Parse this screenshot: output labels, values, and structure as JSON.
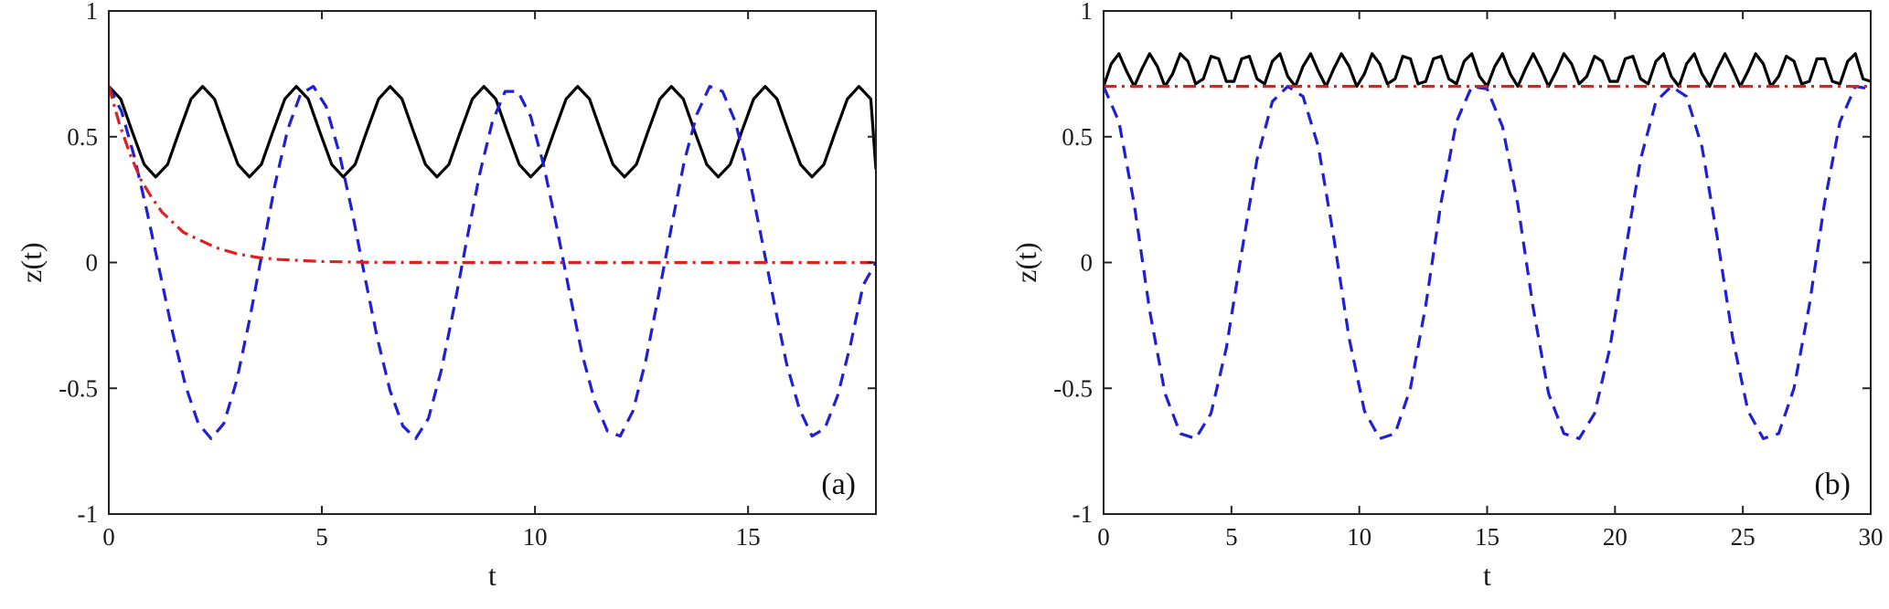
{
  "chart_data": [
    {
      "type": "line",
      "panel_label": "(a)",
      "xlabel": "t",
      "ylabel": "z(t)",
      "xlim": [
        0,
        18
      ],
      "ylim": [
        -1,
        1
      ],
      "xticks": [
        0,
        5,
        10,
        15
      ],
      "yticks": [
        -1,
        -0.5,
        0,
        0.5,
        1
      ],
      "grid": false,
      "series": [
        {
          "color": "#000000",
          "style": "solid",
          "x": [
            0,
            0.28,
            0.55,
            0.83,
            1.1,
            1.38,
            1.65,
            1.93,
            2.2,
            2.48,
            2.75,
            3.03,
            3.3,
            3.58,
            3.85,
            4.13,
            4.4,
            4.68,
            4.95,
            5.23,
            5.5,
            5.78,
            6.05,
            6.33,
            6.6,
            6.88,
            7.15,
            7.43,
            7.7,
            7.98,
            8.25,
            8.53,
            8.8,
            9.08,
            9.35,
            9.63,
            9.9,
            10.18,
            10.45,
            10.73,
            11,
            11.28,
            11.55,
            11.83,
            12.1,
            12.38,
            12.65,
            12.93,
            13.2,
            13.48,
            13.75,
            14.03,
            14.3,
            14.58,
            14.85,
            15.13,
            15.4,
            15.68,
            15.95,
            16.23,
            16.5,
            16.78,
            17.05,
            17.33,
            17.6,
            17.88,
            18
          ],
          "y": [
            0.7,
            0.65,
            0.52,
            0.39,
            0.34,
            0.39,
            0.52,
            0.65,
            0.7,
            0.65,
            0.52,
            0.39,
            0.34,
            0.39,
            0.52,
            0.65,
            0.7,
            0.65,
            0.52,
            0.39,
            0.34,
            0.39,
            0.52,
            0.65,
            0.7,
            0.65,
            0.52,
            0.39,
            0.34,
            0.39,
            0.52,
            0.65,
            0.7,
            0.65,
            0.52,
            0.39,
            0.34,
            0.39,
            0.52,
            0.65,
            0.7,
            0.65,
            0.52,
            0.39,
            0.34,
            0.39,
            0.52,
            0.65,
            0.7,
            0.65,
            0.52,
            0.39,
            0.34,
            0.39,
            0.52,
            0.65,
            0.7,
            0.65,
            0.52,
            0.39,
            0.34,
            0.39,
            0.52,
            0.65,
            0.7,
            0.65,
            0.37
          ]
        },
        {
          "color": "#1f1fd6",
          "style": "dashed",
          "x": [
            0,
            0.3,
            0.6,
            0.9,
            1.2,
            1.5,
            1.8,
            2.1,
            2.4,
            2.7,
            3.0,
            3.3,
            3.6,
            3.9,
            4.2,
            4.5,
            4.8,
            5.1,
            5.4,
            5.7,
            6.0,
            6.3,
            6.6,
            6.9,
            7.2,
            7.5,
            7.8,
            8.1,
            8.4,
            8.7,
            9.0,
            9.3,
            9.6,
            9.9,
            10.2,
            10.5,
            10.8,
            11.1,
            11.4,
            11.7,
            12.0,
            12.3,
            12.6,
            12.9,
            13.2,
            13.5,
            13.8,
            14.1,
            14.4,
            14.7,
            15.0,
            15.3,
            15.6,
            15.9,
            16.2,
            16.5,
            16.8,
            17.1,
            17.4,
            17.7,
            18
          ],
          "y": [
            0.7,
            0.6,
            0.42,
            0.2,
            -0.04,
            -0.28,
            -0.49,
            -0.64,
            -0.7,
            -0.64,
            -0.47,
            -0.23,
            0.04,
            0.31,
            0.53,
            0.67,
            0.7,
            0.62,
            0.44,
            0.21,
            -0.05,
            -0.3,
            -0.51,
            -0.65,
            -0.7,
            -0.62,
            -0.43,
            -0.18,
            0.09,
            0.35,
            0.56,
            0.68,
            0.68,
            0.58,
            0.39,
            0.15,
            -0.11,
            -0.36,
            -0.55,
            -0.67,
            -0.69,
            -0.59,
            -0.39,
            -0.13,
            0.14,
            0.4,
            0.59,
            0.7,
            0.68,
            0.56,
            0.36,
            0.11,
            -0.15,
            -0.4,
            -0.58,
            -0.69,
            -0.66,
            -0.53,
            -0.33,
            -0.09,
            0.0
          ]
        },
        {
          "color": "#e02020",
          "style": "dashdot",
          "x": [
            0,
            0.25,
            0.5,
            0.75,
            1.0,
            1.25,
            1.5,
            1.75,
            2.0,
            2.5,
            3.0,
            3.5,
            4.0,
            5.0,
            6.0,
            8.0,
            10.0,
            12.0,
            14.0,
            16.0,
            18.0
          ],
          "y": [
            0.7,
            0.55,
            0.43,
            0.33,
            0.26,
            0.2,
            0.16,
            0.12,
            0.1,
            0.06,
            0.035,
            0.02,
            0.012,
            0.004,
            0.001,
            0.0,
            0.0,
            0.0,
            0.0,
            0.0,
            0.0
          ]
        }
      ]
    },
    {
      "type": "line",
      "panel_label": "(b)",
      "xlabel": "t",
      "ylabel": "z(t)",
      "xlim": [
        0,
        30
      ],
      "ylim": [
        -1,
        1
      ],
      "xticks": [
        0,
        5,
        10,
        15,
        20,
        25,
        30
      ],
      "yticks": [
        -1,
        -0.5,
        0,
        0.5,
        1
      ],
      "grid": false,
      "series": [
        {
          "color": "#000000",
          "style": "solid",
          "x": [
            0,
            0.3,
            0.6,
            0.9,
            1.2,
            1.5,
            1.8,
            2.1,
            2.4,
            2.7,
            3.0,
            3.3,
            3.6,
            3.9,
            4.2,
            4.5,
            4.8,
            5.1,
            5.4,
            5.7,
            6.0,
            6.3,
            6.6,
            6.9,
            7.2,
            7.5,
            7.8,
            8.1,
            8.4,
            8.7,
            9.0,
            9.3,
            9.6,
            9.9,
            10.2,
            10.5,
            10.8,
            11.1,
            11.4,
            11.7,
            12.0,
            12.3,
            12.6,
            12.9,
            13.2,
            13.5,
            13.8,
            14.1,
            14.4,
            14.7,
            15.0,
            15.3,
            15.6,
            15.9,
            16.2,
            16.5,
            16.8,
            17.1,
            17.4,
            17.7,
            18.0,
            18.3,
            18.6,
            18.9,
            19.2,
            19.5,
            19.8,
            20.1,
            20.4,
            20.7,
            21.0,
            21.3,
            21.6,
            21.9,
            22.2,
            22.5,
            22.8,
            23.1,
            23.4,
            23.7,
            24.0,
            24.3,
            24.6,
            24.9,
            25.2,
            25.5,
            25.8,
            26.1,
            26.4,
            26.7,
            27.0,
            27.3,
            27.6,
            27.9,
            28.2,
            28.5,
            28.8,
            29.1,
            29.4,
            29.7,
            30.0
          ],
          "y": [
            0.7,
            0.79,
            0.83,
            0.76,
            0.7,
            0.77,
            0.83,
            0.78,
            0.7,
            0.75,
            0.83,
            0.8,
            0.71,
            0.73,
            0.82,
            0.81,
            0.72,
            0.72,
            0.81,
            0.82,
            0.73,
            0.71,
            0.8,
            0.83,
            0.74,
            0.7,
            0.78,
            0.83,
            0.76,
            0.7,
            0.77,
            0.83,
            0.78,
            0.7,
            0.75,
            0.83,
            0.79,
            0.71,
            0.73,
            0.82,
            0.81,
            0.71,
            0.72,
            0.81,
            0.82,
            0.73,
            0.71,
            0.8,
            0.83,
            0.74,
            0.7,
            0.78,
            0.83,
            0.75,
            0.7,
            0.77,
            0.83,
            0.77,
            0.7,
            0.76,
            0.83,
            0.79,
            0.71,
            0.74,
            0.82,
            0.8,
            0.72,
            0.72,
            0.81,
            0.82,
            0.73,
            0.71,
            0.8,
            0.83,
            0.74,
            0.7,
            0.79,
            0.83,
            0.75,
            0.7,
            0.77,
            0.83,
            0.77,
            0.7,
            0.76,
            0.83,
            0.79,
            0.7,
            0.74,
            0.82,
            0.8,
            0.71,
            0.72,
            0.81,
            0.81,
            0.72,
            0.71,
            0.8,
            0.83,
            0.73,
            0.72
          ]
        },
        {
          "color": "#1f1fd6",
          "style": "dashed",
          "x": [
            0,
            0.6,
            1.2,
            1.8,
            2.4,
            3.0,
            3.6,
            4.2,
            4.8,
            5.4,
            6.0,
            6.6,
            7.2,
            7.8,
            8.4,
            9.0,
            9.6,
            10.2,
            10.8,
            11.4,
            12.0,
            12.6,
            13.2,
            13.8,
            14.4,
            15.0,
            15.6,
            16.2,
            16.8,
            17.4,
            18.0,
            18.6,
            19.2,
            19.8,
            20.4,
            21.0,
            21.6,
            22.2,
            22.8,
            23.4,
            24.0,
            24.6,
            25.2,
            25.8,
            26.4,
            27.0,
            27.6,
            28.2,
            28.8,
            29.4,
            30.0
          ],
          "y": [
            0.7,
            0.56,
            0.23,
            -0.19,
            -0.52,
            -0.68,
            -0.7,
            -0.6,
            -0.34,
            0.04,
            0.41,
            0.64,
            0.7,
            0.66,
            0.46,
            0.1,
            -0.3,
            -0.59,
            -0.7,
            -0.68,
            -0.5,
            -0.17,
            0.24,
            0.56,
            0.7,
            0.69,
            0.54,
            0.23,
            -0.18,
            -0.52,
            -0.68,
            -0.7,
            -0.6,
            -0.34,
            0.04,
            0.41,
            0.64,
            0.7,
            0.66,
            0.46,
            0.1,
            -0.3,
            -0.59,
            -0.7,
            -0.68,
            -0.5,
            -0.17,
            0.24,
            0.56,
            0.7,
            0.69
          ]
        },
        {
          "color": "#e02020",
          "style": "dashdot",
          "x": [
            0,
            5,
            10,
            15,
            20,
            25,
            30
          ],
          "y": [
            0.7,
            0.7,
            0.7,
            0.7,
            0.7,
            0.7,
            0.7
          ]
        }
      ]
    }
  ]
}
